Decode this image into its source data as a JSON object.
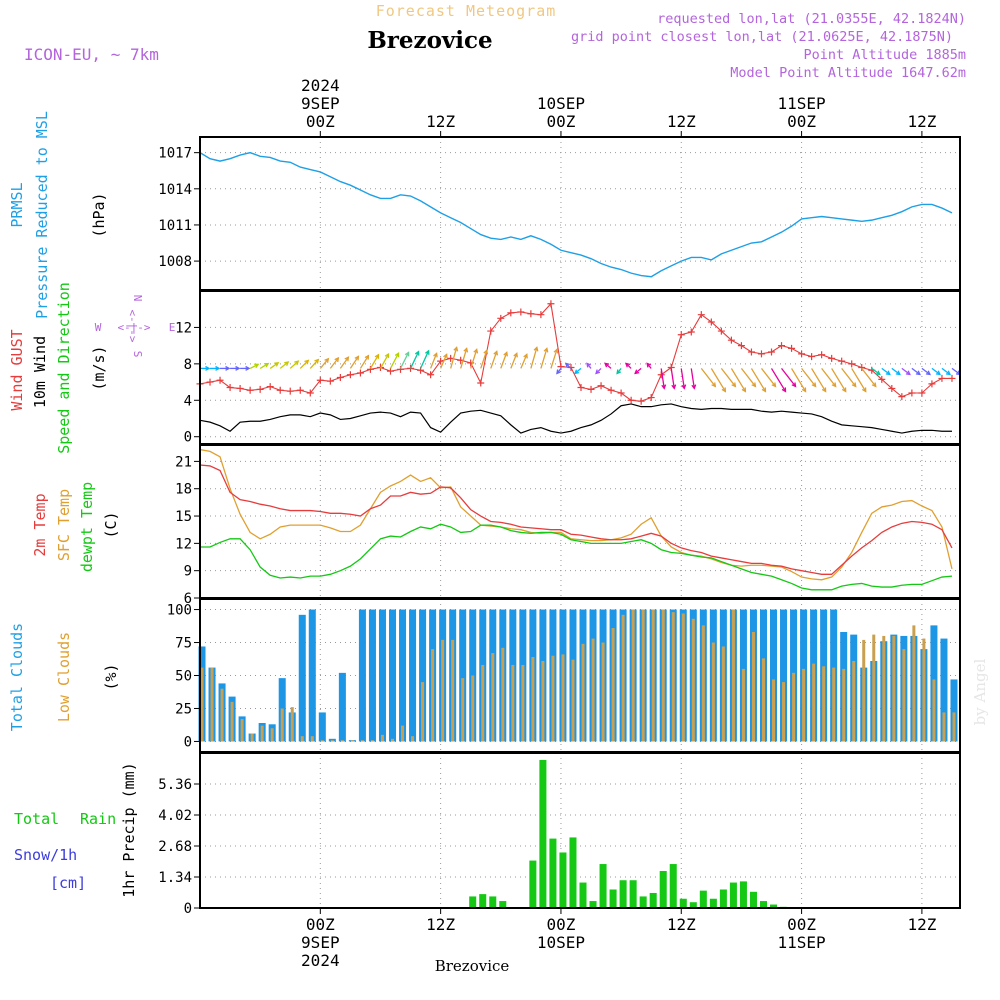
{
  "header": {
    "subtitle": "Forecast Meteogram",
    "station": "Brezovice",
    "model": "ICON-EU, ~ 7km",
    "requested": "requested lon,lat (21.0355E, 42.1824N)",
    "grid_point": "grid point closest lon,lat (21.0625E, 42.1875N)",
    "point_alt": "Point Altitude 1885m",
    "model_alt": "Model Point Altitude 1647.62m"
  },
  "time_axis": {
    "top": [
      {
        "lines": [
          "2024",
          "9SEP",
          "00Z"
        ],
        "t": 12
      },
      {
        "lines": [
          "12Z"
        ],
        "t": 24
      },
      {
        "lines": [
          "10SEP",
          "00Z"
        ],
        "t": 36
      },
      {
        "lines": [
          "12Z"
        ],
        "t": 48
      },
      {
        "lines": [
          "11SEP",
          "00Z"
        ],
        "t": 60
      },
      {
        "lines": [
          "12Z"
        ],
        "t": 72
      }
    ],
    "bottom": [
      {
        "lines": [
          "00Z",
          "9SEP",
          "2024"
        ],
        "t": 12
      },
      {
        "lines": [
          "12Z"
        ],
        "t": 24
      },
      {
        "lines": [
          "00Z",
          "10SEP"
        ],
        "t": 36
      },
      {
        "lines": [
          "12Z"
        ],
        "t": 48
      },
      {
        "lines": [
          "00Z",
          "11SEP"
        ],
        "t": 60
      },
      {
        "lines": [
          "12Z"
        ],
        "t": 72
      }
    ],
    "footer": "Brezovice",
    "watermark": "by Angel"
  },
  "legends": {
    "pressure": [
      "PRMSL",
      "Pressure Reduced to MSL",
      "(hPa)"
    ],
    "wind": [
      "Wind GUST",
      "10m Wind",
      "Speed and Direction",
      "(m/s)"
    ],
    "compass": {
      "n": "N",
      "s": "S",
      "w": "W",
      "e": "E",
      "rose": "<-|->"
    },
    "temp": [
      "2m Temp",
      "SFC Temp",
      "dewpt Temp",
      "(C)"
    ],
    "clouds": [
      "Total Clouds",
      "Low Clouds",
      "(%)"
    ],
    "precip": [
      "Total",
      "Rain",
      "Snow/1h",
      "[cm]",
      "1hr Precip (mm)"
    ]
  },
  "colors": {
    "pressure": "#1ea0e6",
    "gust": "#e63c3c",
    "wind": "#000000",
    "dir_label": "#14c814",
    "t2m": "#e63c3c",
    "sfc": "#e0a030",
    "dewpt": "#14c814",
    "total_cloud": "#1e96e6",
    "low_cloud": "#c8a050",
    "rain": "#14c814",
    "snow": "#3c3cdc",
    "header_purple": "#b464dc",
    "subtitle": "#f0c882"
  },
  "chart_data": [
    {
      "type": "line",
      "name": "pressure",
      "title": "PRMSL Pressure Reduced to MSL",
      "ylabel": "(hPa)",
      "ylim": [
        1005.6,
        1018.3
      ],
      "yticks": [
        1008,
        1011,
        1014,
        1017
      ],
      "x": [
        0,
        1,
        2,
        3,
        4,
        5,
        6,
        7,
        8,
        9,
        10,
        11,
        12,
        13,
        14,
        15,
        16,
        17,
        18,
        19,
        20,
        21,
        22,
        23,
        24,
        25,
        26,
        27,
        28,
        29,
        30,
        31,
        32,
        33,
        34,
        35,
        36,
        37,
        38,
        39,
        40,
        41,
        42,
        43,
        44,
        45,
        46,
        47,
        48,
        49,
        50,
        51,
        52,
        53,
        54,
        55,
        56,
        57,
        58,
        59,
        60,
        61,
        62,
        63,
        64,
        65,
        66,
        67,
        68,
        69,
        70,
        71,
        72,
        73,
        74,
        75
      ],
      "values": [
        1017,
        1016.5,
        1016.3,
        1016.5,
        1016.8,
        1017,
        1016.7,
        1016.6,
        1016.3,
        1016.2,
        1015.8,
        1015.6,
        1015.4,
        1015,
        1014.6,
        1014.3,
        1013.9,
        1013.5,
        1013.2,
        1013.2,
        1013.5,
        1013.4,
        1013,
        1012.5,
        1012,
        1011.6,
        1011.2,
        1010.7,
        1010.2,
        1009.9,
        1009.8,
        1010,
        1009.8,
        1010.1,
        1009.8,
        1009.4,
        1008.9,
        1008.7,
        1008.5,
        1008.2,
        1007.8,
        1007.5,
        1007.3,
        1007,
        1006.8,
        1006.7,
        1007.2,
        1007.6,
        1008,
        1008.3,
        1008.3,
        1008.1,
        1008.6,
        1008.9,
        1009.2,
        1009.5,
        1009.6,
        1010,
        1010.4,
        1010.9,
        1011.5,
        1011.6,
        1011.7,
        1011.6,
        1011.5,
        1011.4,
        1011.3,
        1011.4,
        1011.6,
        1011.8,
        1012.1,
        1012.5,
        1012.7,
        1012.7,
        1012.4,
        1012
      ]
    },
    {
      "type": "line",
      "name": "wind",
      "title": "Wind GUST / 10m Wind Speed and Direction",
      "ylabel": "(m/s)",
      "ylim": [
        -0.8,
        16
      ],
      "yticks": [
        0,
        4,
        8,
        12
      ],
      "x": [
        0,
        1,
        2,
        3,
        4,
        5,
        6,
        7,
        8,
        9,
        10,
        11,
        12,
        13,
        14,
        15,
        16,
        17,
        18,
        19,
        20,
        21,
        22,
        23,
        24,
        25,
        26,
        27,
        28,
        29,
        30,
        31,
        32,
        33,
        34,
        35,
        36,
        37,
        38,
        39,
        40,
        41,
        42,
        43,
        44,
        45,
        46,
        47,
        48,
        49,
        50,
        51,
        52,
        53,
        54,
        55,
        56,
        57,
        58,
        59,
        60,
        61,
        62,
        63,
        64,
        65,
        66,
        67,
        68,
        69,
        70,
        71,
        72,
        73,
        74,
        75
      ],
      "gust": [
        5.8,
        6,
        6.2,
        5.4,
        5.3,
        5.1,
        5.2,
        5.5,
        5.1,
        5,
        5.1,
        4.8,
        6.2,
        6.1,
        6.5,
        6.8,
        7,
        7.4,
        7.6,
        7.2,
        7.4,
        7.5,
        7.3,
        6.8,
        8.3,
        8.6,
        8.4,
        8.1,
        5.9,
        11.6,
        13,
        13.6,
        13.7,
        13.5,
        13.4,
        14.6,
        7.7,
        7.6,
        5.4,
        5.2,
        5.6,
        5.1,
        4.8,
        4,
        3.9,
        4.3,
        6.8,
        7.6,
        11.2,
        11.5,
        13.4,
        12.6,
        11.6,
        10.6,
        10,
        9.3,
        9.1,
        9.3,
        10,
        9.7,
        9.1,
        8.8,
        9,
        8.6,
        8.3,
        8,
        7.6,
        7.3,
        6.3,
        5.3,
        4.4,
        4.8,
        4.8,
        5.8,
        6.4,
        6.4
      ],
      "wind": [
        1.8,
        1.6,
        1.2,
        0.6,
        1.6,
        1.7,
        1.7,
        1.9,
        2.2,
        2.4,
        2.4,
        2.2,
        2.6,
        2.4,
        1.9,
        2,
        2.3,
        2.6,
        2.7,
        2.6,
        2.2,
        2.7,
        2.6,
        1,
        0.5,
        1.6,
        2.6,
        2.8,
        2.9,
        2.6,
        2.3,
        1.3,
        0.4,
        0.8,
        1,
        0.6,
        0.4,
        0.6,
        1,
        1.3,
        1.8,
        2.5,
        3.4,
        3.6,
        3.3,
        3.3,
        3.5,
        3.6,
        3.3,
        3.1,
        3,
        3.1,
        3.1,
        3,
        3,
        3,
        2.8,
        2.7,
        2.8,
        2.7,
        2.6,
        2.5,
        2.2,
        1.7,
        1.3,
        1.2,
        1.1,
        1,
        0.8,
        0.6,
        0.4,
        0.6,
        0.7,
        0.7,
        0.6,
        0.6
      ],
      "dir_color": [
        "#00b4ff",
        "#00b4ff",
        "#6464ff",
        "#6464ff",
        "#6464ff",
        "#b4d200",
        "#b4d200",
        "#c8c800",
        "#c8c800",
        "#c8c800",
        "#dcb400",
        "#dcb400",
        "#e0a030",
        "#e0a030",
        "#e0a030",
        "#e0a030",
        "#e0a030",
        "#dcb400",
        "#c8c800",
        "#b4d200",
        "#64d296",
        "#00c8a0",
        "#00c8a0",
        "#e0a030",
        "#e0a030",
        "#e0a030",
        "#e0a030",
        "#e0a030",
        "#e0a030",
        "#e0a030",
        "#e0a030",
        "#e0a030",
        "#e0a030",
        "#e0a030",
        "#e0a030",
        "#e0a030",
        "#6464ff",
        "#6464ff",
        "#00b4ff",
        "#a050ff",
        "#a050ff",
        "#e600a0",
        "#00c8a0",
        "#e600a0",
        "#e600a0",
        "#e600a0",
        "#e600a0",
        "#e600a0",
        "#e600a0",
        "#e600a0",
        "#e0a030",
        "#e0a030",
        "#e0a030",
        "#e0a030",
        "#e0a030",
        "#e0a030",
        "#e0a030",
        "#e600a0",
        "#e600a0",
        "#e0a030",
        "#e0a030",
        "#e0a030",
        "#e0a030",
        "#e0a030",
        "#e0a030",
        "#e0a030",
        "#e0a030",
        "#00c8a0",
        "#00b4ff",
        "#00b4ff",
        "#a050ff",
        "#6464ff",
        "#6464ff",
        "#00b4ff",
        "#00b4ff",
        "#6464ff"
      ]
    },
    {
      "type": "line",
      "name": "temperature",
      "title": "2m Temp / SFC Temp / dewpt Temp",
      "ylabel": "(C)",
      "ylim": [
        6,
        22.8
      ],
      "yticks": [
        6,
        9,
        12,
        15,
        18,
        21
      ],
      "x": [
        0,
        1,
        2,
        3,
        4,
        5,
        6,
        7,
        8,
        9,
        10,
        11,
        12,
        13,
        14,
        15,
        16,
        17,
        18,
        19,
        20,
        21,
        22,
        23,
        24,
        25,
        26,
        27,
        28,
        29,
        30,
        31,
        32,
        33,
        34,
        35,
        36,
        37,
        38,
        39,
        40,
        41,
        42,
        43,
        44,
        45,
        46,
        47,
        48,
        49,
        50,
        51,
        52,
        53,
        54,
        55,
        56,
        57,
        58,
        59,
        60,
        61,
        62,
        63,
        64,
        65,
        66,
        67,
        68,
        69,
        70,
        71,
        72,
        73,
        74,
        75
      ],
      "t2m": [
        20.6,
        20.5,
        20,
        17.6,
        16.8,
        16.6,
        16.3,
        16.1,
        15.8,
        15.6,
        15.6,
        15.6,
        15.5,
        15.3,
        15.3,
        15.2,
        15,
        15.8,
        16.2,
        17.2,
        17.2,
        17.6,
        17.4,
        17.5,
        18.2,
        18.1,
        17,
        15.7,
        15,
        14.4,
        14.3,
        14.1,
        13.8,
        13.7,
        13.6,
        13.5,
        13.5,
        13,
        12.9,
        12.7,
        12.5,
        12.4,
        12.4,
        12.5,
        12.8,
        13.1,
        12.8,
        12,
        11.5,
        11.2,
        11,
        10.6,
        10.4,
        10.2,
        10,
        9.8,
        9.8,
        9.6,
        9.5,
        9.2,
        9,
        8.8,
        8.6,
        8.6,
        9.6,
        10.6,
        11.5,
        12.3,
        13.2,
        13.8,
        14.2,
        14.4,
        14.3,
        14.1,
        13.5,
        11.5
      ],
      "sfc": [
        22.3,
        22.1,
        21.5,
        18,
        15.2,
        13.2,
        12.5,
        13,
        13.8,
        14,
        14,
        14,
        14,
        13.7,
        13.3,
        13.3,
        14,
        15.8,
        17.6,
        18.3,
        18.8,
        19.5,
        18.8,
        19.2,
        18.1,
        18.2,
        16,
        15,
        14,
        13.9,
        13.8,
        13.6,
        13.5,
        13.2,
        13.1,
        13.2,
        13.2,
        12.5,
        12.4,
        12.3,
        12.3,
        12.4,
        12.6,
        13,
        14.1,
        14.8,
        12.8,
        11.6,
        11,
        10.7,
        10.6,
        10.3,
        9.9,
        9.6,
        9.5,
        9.6,
        9.6,
        9.5,
        9.4,
        8.9,
        8.3,
        8.1,
        8,
        8.3,
        9.4,
        11,
        13.2,
        15.3,
        16,
        16.2,
        16.6,
        16.7,
        16.1,
        15.6,
        13.8,
        9.2
      ],
      "dewpt": [
        11.6,
        11.6,
        12.1,
        12.5,
        12.5,
        11.3,
        9.4,
        8.5,
        8.2,
        8.3,
        8.2,
        8.4,
        8.4,
        8.6,
        9,
        9.5,
        10.3,
        11.4,
        12.5,
        12.8,
        12.7,
        13.3,
        13.8,
        13.6,
        14.1,
        13.8,
        13.2,
        13.3,
        14,
        14,
        13.8,
        13.4,
        13.2,
        13.1,
        13.2,
        13.2,
        13,
        12.4,
        12.2,
        12,
        12,
        12,
        12,
        12.2,
        12.4,
        12,
        11.3,
        11,
        10.9,
        10.7,
        10.5,
        10.4,
        10,
        9.6,
        9.2,
        8.8,
        8.6,
        8.4,
        8,
        7.6,
        7.1,
        6.9,
        6.9,
        6.9,
        7.3,
        7.5,
        7.6,
        7.3,
        7.2,
        7.2,
        7.4,
        7.5,
        7.5,
        7.9,
        8.3,
        8.4
      ]
    },
    {
      "type": "bar",
      "name": "clouds",
      "title": "Total Clouds / Low Clouds",
      "ylabel": "(%)",
      "ylim": [
        -8,
        108
      ],
      "yticks": [
        0,
        25,
        50,
        75,
        100
      ],
      "x": [
        0,
        1,
        2,
        3,
        4,
        5,
        6,
        7,
        8,
        9,
        10,
        11,
        12,
        13,
        14,
        15,
        16,
        17,
        18,
        19,
        20,
        21,
        22,
        23,
        24,
        25,
        26,
        27,
        28,
        29,
        30,
        31,
        32,
        33,
        34,
        35,
        36,
        37,
        38,
        39,
        40,
        41,
        42,
        43,
        44,
        45,
        46,
        47,
        48,
        49,
        50,
        51,
        52,
        53,
        54,
        55,
        56,
        57,
        58,
        59,
        60,
        61,
        62,
        63,
        64,
        65,
        66,
        67,
        68,
        69,
        70,
        71,
        72,
        73,
        74,
        75
      ],
      "total": [
        72,
        56,
        44,
        34,
        19,
        6,
        14,
        13,
        48,
        22,
        96,
        100,
        22,
        2,
        52,
        1,
        100,
        100,
        100,
        100,
        100,
        100,
        100,
        100,
        100,
        100,
        100,
        100,
        100,
        100,
        100,
        100,
        100,
        100,
        100,
        100,
        100,
        100,
        100,
        100,
        100,
        100,
        100,
        100,
        100,
        100,
        100,
        100,
        100,
        100,
        100,
        100,
        100,
        100,
        100,
        100,
        100,
        100,
        100,
        100,
        100,
        100,
        100,
        100,
        83,
        81,
        56,
        61,
        76,
        81,
        80,
        80,
        70,
        88,
        78,
        47
      ],
      "low": [
        56,
        56,
        40,
        30,
        17,
        6,
        12,
        10,
        25,
        26,
        4,
        4,
        1,
        1,
        1,
        1,
        1,
        1,
        5,
        2,
        12,
        4,
        45,
        70,
        77,
        77,
        48,
        50,
        58,
        67,
        71,
        58,
        58,
        64,
        61,
        65,
        66,
        62,
        74,
        78,
        75,
        86,
        96,
        100,
        100,
        100,
        100,
        98,
        97,
        93,
        88,
        75,
        72,
        100,
        55,
        83,
        63,
        47,
        45,
        52,
        55,
        59,
        57,
        56,
        55,
        61,
        77,
        81,
        80,
        80,
        70,
        88,
        78,
        47,
        22,
        22
      ]
    },
    {
      "type": "bar",
      "name": "precip",
      "title": "1hr Precip",
      "ylabel": "1hr Precip (mm)",
      "ylim": [
        0,
        6.7
      ],
      "yticks": [
        0,
        1.34,
        2.68,
        4.02,
        5.36
      ],
      "x": [
        0,
        1,
        2,
        3,
        4,
        5,
        6,
        7,
        8,
        9,
        10,
        11,
        12,
        13,
        14,
        15,
        16,
        17,
        18,
        19,
        20,
        21,
        22,
        23,
        24,
        25,
        26,
        27,
        28,
        29,
        30,
        31,
        32,
        33,
        34,
        35,
        36,
        37,
        38,
        39,
        40,
        41,
        42,
        43,
        44,
        45,
        46,
        47,
        48,
        49,
        50,
        51,
        52,
        53,
        54,
        55,
        56,
        57,
        58,
        59,
        60,
        61,
        62,
        63,
        64,
        65,
        66,
        67,
        68,
        69,
        70,
        71,
        72,
        73,
        74,
        75
      ],
      "rain": [
        0,
        0,
        0,
        0,
        0,
        0,
        0,
        0,
        0,
        0,
        0,
        0,
        0,
        0,
        0,
        0,
        0,
        0,
        0,
        0,
        0,
        0,
        0,
        0,
        0,
        0,
        0,
        0.5,
        0.6,
        0.5,
        0.3,
        0,
        0,
        2.05,
        6.4,
        3.0,
        2.4,
        3.05,
        1.1,
        0.3,
        1.9,
        0.8,
        1.2,
        1.2,
        0.5,
        0.65,
        1.6,
        1.9,
        0.4,
        0.25,
        0.75,
        0.4,
        0.8,
        1.1,
        1.15,
        0.7,
        0.3,
        0.15,
        0.05,
        0,
        0,
        0,
        0,
        0,
        0,
        0,
        0,
        0,
        0,
        0,
        0,
        0,
        0,
        0,
        0,
        0
      ],
      "snow": [
        0,
        0,
        0,
        0,
        0,
        0,
        0,
        0,
        0,
        0,
        0,
        0,
        0,
        0,
        0,
        0,
        0,
        0,
        0,
        0,
        0,
        0,
        0,
        0,
        0,
        0,
        0,
        0,
        0,
        0,
        0,
        0,
        0,
        0,
        0,
        0,
        0,
        0,
        0,
        0,
        0,
        0,
        0,
        0,
        0,
        0,
        0,
        0,
        0,
        0,
        0,
        0,
        0,
        0,
        0,
        0,
        0,
        0,
        0,
        0,
        0,
        0,
        0,
        0,
        0,
        0,
        0,
        0,
        0,
        0,
        0,
        0,
        0,
        0,
        0,
        0
      ]
    }
  ]
}
